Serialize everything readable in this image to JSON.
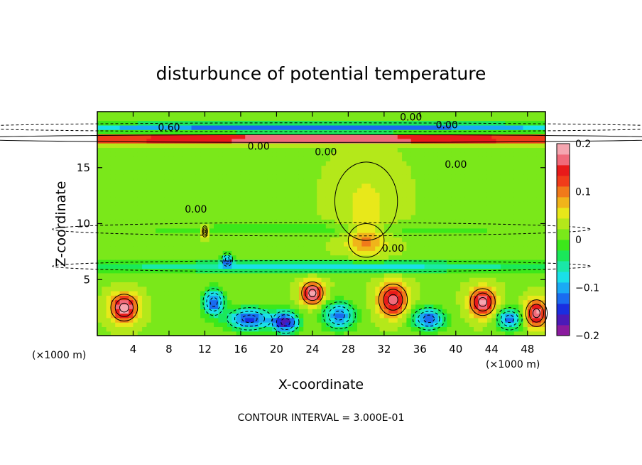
{
  "chart_data": {
    "type": "heatmap",
    "title": "disturbunce of potential temperature",
    "xlabel": "X-coordinate",
    "ylabel": "Z-coordinate",
    "x_unit_left": "(×1000 m)",
    "x_unit_right": "(×1000 m)",
    "footer": "CONTOUR INTERVAL = 3.000E-01",
    "xlim": [
      0,
      50
    ],
    "ylim": [
      0,
      20
    ],
    "x_ticks": [
      4,
      8,
      12,
      16,
      20,
      24,
      28,
      32,
      36,
      40,
      44,
      48
    ],
    "y_ticks": [
      5,
      10,
      15
    ],
    "colorbar": {
      "min": -0.2,
      "max": 0.2,
      "tick_values": [
        0.2,
        0.1,
        0,
        -0.1,
        -0.2
      ],
      "tick_labels": [
        "0.2",
        "0.1",
        "0",
        "−0.1",
        "−0.2"
      ],
      "colors": [
        "#8a1a9e",
        "#4b1ab8",
        "#1a2ee0",
        "#1a6cf0",
        "#1aaaf5",
        "#1ae0e8",
        "#1ae8a8",
        "#1ae85a",
        "#3ce81a",
        "#7ae81a",
        "#b4e81a",
        "#e8e81a",
        "#f0b41a",
        "#f07a1a",
        "#f03c1a",
        "#e81a1a",
        "#f06a7a",
        "#f5a6b0"
      ]
    },
    "contour_labels": [
      "0.60",
      "0.00",
      "0.00",
      "0.00",
      "0.00",
      "0.00",
      "0.00",
      "0.00"
    ],
    "background_value": 0.02,
    "features": [
      {
        "kind": "warm_core",
        "x": 30,
        "z": 8.5,
        "sx": 2.0,
        "sz": 1.5,
        "value": 0.07
      },
      {
        "kind": "warm_plume",
        "x": 30,
        "z": 12,
        "sx": 3.5,
        "sz": 3.5,
        "value": 0.03
      },
      {
        "kind": "cold_layer",
        "x": 25,
        "z": 6.2,
        "sx": 30,
        "sz": 0.5,
        "value": -0.1
      },
      {
        "kind": "cold_band",
        "x": 25,
        "z": 9.5,
        "sx": 30,
        "sz": 0.6,
        "value": -0.03
      },
      {
        "kind": "warm_band",
        "x": 25,
        "z": 17.6,
        "sx": 40,
        "sz": 0.35,
        "value": 0.2
      },
      {
        "kind": "cold_band",
        "x": 25,
        "z": 18.6,
        "sx": 40,
        "sz": 0.4,
        "value": -0.15
      },
      {
        "kind": "bubble",
        "x": 3,
        "z": 2.5,
        "sx": 1.5,
        "sz": 1.2,
        "value": 0.18
      },
      {
        "kind": "bubble",
        "x": 13,
        "z": 3,
        "sx": 1.2,
        "sz": 1.2,
        "value": -0.15
      },
      {
        "kind": "bubble",
        "x": 17,
        "z": 1.5,
        "sx": 2.5,
        "sz": 1.0,
        "value": -0.16
      },
      {
        "kind": "bubble",
        "x": 21,
        "z": 1.2,
        "sx": 1.5,
        "sz": 1.0,
        "value": -0.18
      },
      {
        "kind": "bubble",
        "x": 24,
        "z": 3.8,
        "sx": 1.2,
        "sz": 1.0,
        "value": 0.17
      },
      {
        "kind": "bubble",
        "x": 27,
        "z": 1.8,
        "sx": 1.8,
        "sz": 1.2,
        "value": -0.14
      },
      {
        "kind": "bubble",
        "x": 33,
        "z": 3.2,
        "sx": 1.6,
        "sz": 1.4,
        "value": 0.16
      },
      {
        "kind": "bubble",
        "x": 37,
        "z": 1.5,
        "sx": 1.8,
        "sz": 1.0,
        "value": -0.15
      },
      {
        "kind": "bubble",
        "x": 43,
        "z": 3.0,
        "sx": 1.4,
        "sz": 1.2,
        "value": 0.18
      },
      {
        "kind": "bubble",
        "x": 46,
        "z": 1.5,
        "sx": 1.4,
        "sz": 1.0,
        "value": -0.14
      },
      {
        "kind": "bubble",
        "x": 49,
        "z": 2.0,
        "sx": 1.2,
        "sz": 1.2,
        "value": 0.17
      },
      {
        "kind": "bubble",
        "x": 14.5,
        "z": 6.8,
        "sx": 0.6,
        "sz": 0.6,
        "value": -0.12
      },
      {
        "kind": "bubble",
        "x": 12,
        "z": 9.3,
        "sx": 0.3,
        "sz": 0.5,
        "value": 0.12
      }
    ]
  }
}
